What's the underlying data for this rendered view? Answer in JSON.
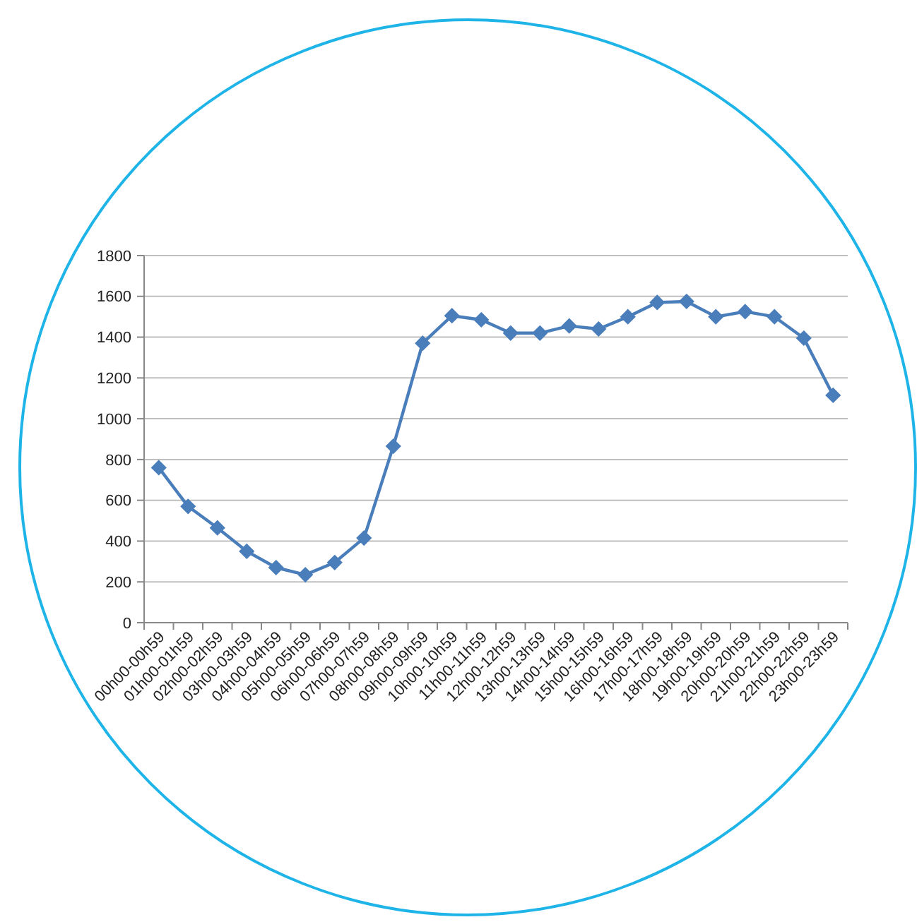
{
  "chart_data": {
    "type": "line",
    "categories": [
      "00h00-00h59",
      "01h00-01h59",
      "02h00-02h59",
      "03h00-03h59",
      "04h00-04h59",
      "05h00-05h59",
      "06h00-06h59",
      "07h00-07h59",
      "08h00-08h59",
      "09h00-09h59",
      "10h00-10h59",
      "11h00-11h59",
      "12h00-12h59",
      "13h00-13h59",
      "14h00-14h59",
      "15h00-15h59",
      "16h00-16h59",
      "17h00-17h59",
      "18h00-18h59",
      "19h00-19h59",
      "20h00-20h59",
      "21h00-21h59",
      "22h00-22h59",
      "23h00-23h59"
    ],
    "series": [
      {
        "color": "#4a7ebb",
        "values": [
          760,
          570,
          465,
          350,
          270,
          235,
          295,
          415,
          865,
          1370,
          1505,
          1485,
          1420,
          1420,
          1455,
          1440,
          1500,
          1570,
          1575,
          1500,
          1525,
          1500,
          1395,
          1115
        ]
      }
    ],
    "ylim": [
      0,
      1800
    ],
    "yticks": [
      0,
      200,
      400,
      600,
      800,
      1000,
      1200,
      1400,
      1600,
      1800
    ],
    "grid": "y",
    "marker": "diamond",
    "line_style": "solid"
  }
}
